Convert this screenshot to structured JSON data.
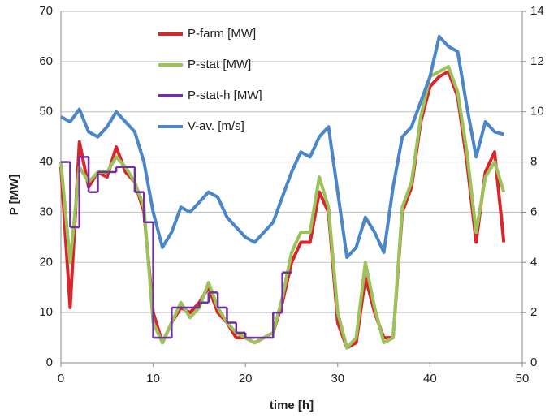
{
  "chart_data": {
    "type": "line",
    "xlabel": "time [h]",
    "ylabel": "P [MW]",
    "x": [
      0,
      1,
      2,
      3,
      4,
      5,
      6,
      7,
      8,
      9,
      10,
      11,
      12,
      13,
      14,
      15,
      16,
      17,
      18,
      19,
      20,
      21,
      22,
      23,
      24,
      25,
      26,
      27,
      28,
      29,
      30,
      31,
      32,
      33,
      34,
      35,
      36,
      37,
      38,
      39,
      40,
      41,
      42,
      43,
      44,
      45,
      46,
      47,
      48
    ],
    "xlim": [
      0,
      50
    ],
    "xticks": [
      0,
      10,
      20,
      30,
      40,
      50
    ],
    "ylim": [
      0,
      70
    ],
    "yticks": [
      0,
      10,
      20,
      30,
      40,
      50,
      60,
      70
    ],
    "y2lim": [
      0,
      14
    ],
    "y2ticks": [
      0,
      2,
      4,
      6,
      8,
      10,
      12,
      14
    ],
    "grid": true,
    "legend": "upper left",
    "series": [
      {
        "name": "P-farm [MW]",
        "color": "#d9262b",
        "values": [
          39,
          11,
          44,
          35,
          38,
          37,
          43,
          38,
          36,
          30,
          10,
          4,
          8,
          11,
          10,
          12,
          15,
          10,
          8,
          5,
          5,
          4,
          5,
          6,
          12,
          20,
          24,
          24,
          34,
          30,
          8,
          3,
          4,
          17,
          10,
          5,
          5,
          30,
          35,
          48,
          55,
          57,
          58,
          53,
          40,
          24,
          38,
          42,
          24
        ]
      },
      {
        "name": "P-stat [MW]",
        "color": "#9bc35a",
        "values": [
          40,
          20,
          39,
          36,
          38,
          38,
          41,
          39,
          36,
          31,
          8,
          4,
          8,
          12,
          9,
          11,
          16,
          11,
          8,
          6,
          5,
          4,
          5,
          6,
          13,
          22,
          26,
          26,
          37,
          31,
          10,
          3,
          5,
          20,
          11,
          4,
          5,
          31,
          36,
          49,
          57,
          58,
          59,
          54,
          42,
          26,
          37,
          40,
          34
        ]
      },
      {
        "name": "P-stat-h [MW]",
        "color": "#7030a0",
        "step": true,
        "values": [
          40,
          27,
          41,
          34,
          38,
          38,
          39,
          39,
          34,
          28,
          5,
          5,
          11,
          11,
          11,
          12,
          14,
          11,
          8,
          6,
          5,
          5,
          5,
          10,
          18,
          null,
          null,
          null,
          null,
          null,
          null,
          null,
          null,
          null,
          null,
          null,
          null,
          null,
          null,
          null,
          null,
          null,
          null,
          null,
          null,
          null,
          null,
          null,
          null
        ]
      },
      {
        "name": "V-av. [m/s]",
        "color": "#4a86c8",
        "axis": "y2",
        "values": [
          9.8,
          9.6,
          10.1,
          9.2,
          9.0,
          9.4,
          10.0,
          9.6,
          9.2,
          8.0,
          6.0,
          4.6,
          5.2,
          6.2,
          6.0,
          6.4,
          6.8,
          6.6,
          5.8,
          5.4,
          5.0,
          4.8,
          5.2,
          5.6,
          6.6,
          7.6,
          8.4,
          8.2,
          9.0,
          9.4,
          6.8,
          4.2,
          4.6,
          5.8,
          5.2,
          4.4,
          7.0,
          9.0,
          9.4,
          10.4,
          11.4,
          13.0,
          12.6,
          12.4,
          10.2,
          8.2,
          9.6,
          9.2,
          9.1
        ]
      }
    ]
  }
}
